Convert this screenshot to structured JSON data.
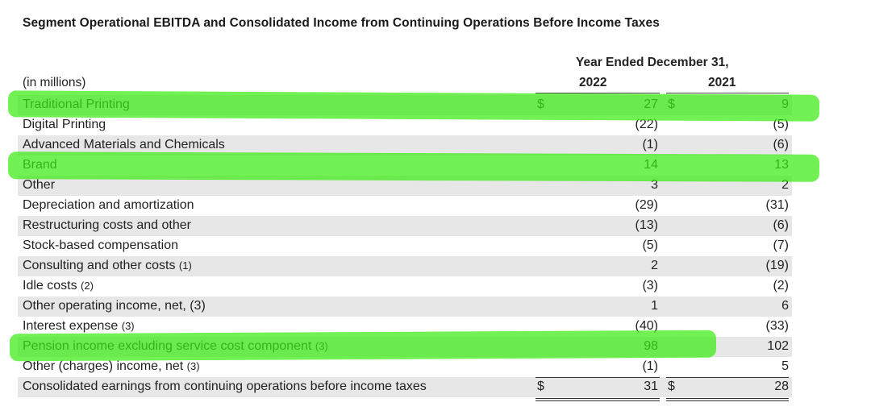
{
  "title": "Segment Operational EBITDA and Consolidated Income from Continuing Operations Before Income Taxes",
  "header": {
    "group_label": "Year Ended December 31,",
    "units_label": "(in millions)",
    "years": [
      "2022",
      "2021"
    ]
  },
  "rows": [
    {
      "label": "Traditional Printing",
      "note": "",
      "dollar": "$",
      "v2022": "27",
      "v2021": "9",
      "highlighted": true
    },
    {
      "label": "Digital Printing",
      "note": "",
      "v2022": "(22)",
      "v2021": "(5)"
    },
    {
      "label": "Advanced Materials and Chemicals",
      "note": "",
      "v2022": "(1)",
      "v2021": "(6)"
    },
    {
      "label": "Brand",
      "note": "",
      "v2022": "14",
      "v2021": "13",
      "highlighted": true
    },
    {
      "label": "Other",
      "note": "",
      "v2022": "3",
      "v2021": "2"
    },
    {
      "label": "Depreciation and amortization",
      "note": "",
      "v2022": "(29)",
      "v2021": "(31)"
    },
    {
      "label": "Restructuring costs and other",
      "note": "",
      "v2022": "(13)",
      "v2021": "(6)"
    },
    {
      "label": "Stock-based compensation",
      "note": "",
      "v2022": "(5)",
      "v2021": "(7)"
    },
    {
      "label": "Consulting and other costs",
      "note": "(1)",
      "v2022": "2",
      "v2021": "(19)"
    },
    {
      "label": "Idle costs",
      "note": "(2)",
      "v2022": "(3)",
      "v2021": "(2)"
    },
    {
      "label": "Other operating income, net, (3)",
      "note": "",
      "v2022": "1",
      "v2021": "6"
    },
    {
      "label": "Interest expense",
      "note": "(3)",
      "v2022": "(40)",
      "v2021": "(33)"
    },
    {
      "label": "Pension income excluding service cost component",
      "note": "(3)",
      "v2022": "98",
      "v2021": "102",
      "highlighted": true
    },
    {
      "label": "Other (charges) income, net",
      "note": "(3)",
      "v2022": "(1)",
      "v2021": "5"
    },
    {
      "label": "Consolidated earnings from continuing operations before income taxes",
      "note": "",
      "dollar": "$",
      "v2022": "31",
      "v2021": "28"
    }
  ],
  "highlight_color": "#3ceb14",
  "row_shade_color": "#e7e7e7"
}
